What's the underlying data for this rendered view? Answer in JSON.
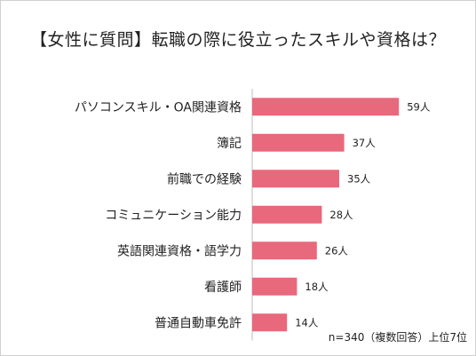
{
  "chart_data": {
    "type": "bar",
    "orientation": "horizontal",
    "title": "【女性に質問】転職の際に役立ったスキルや資格は？",
    "categories": [
      "パソコンスキル・OA関連資格",
      "簿記",
      "前職での経験",
      "コミュニケーション能力",
      "英語関連資格・語学力",
      "看護師",
      "普通自動車免許"
    ],
    "values": [
      59,
      37,
      35,
      28,
      26,
      18,
      14
    ],
    "value_labels": [
      "59人",
      "37人",
      "35人",
      "28人",
      "26人",
      "18人",
      "14人"
    ],
    "bar_color": "#e8687c",
    "axis_color": "#bfbfbf",
    "xlim": [
      0,
      60
    ],
    "grid": false,
    "legend": "none"
  },
  "note": "n=340（複数回答）上位7位"
}
